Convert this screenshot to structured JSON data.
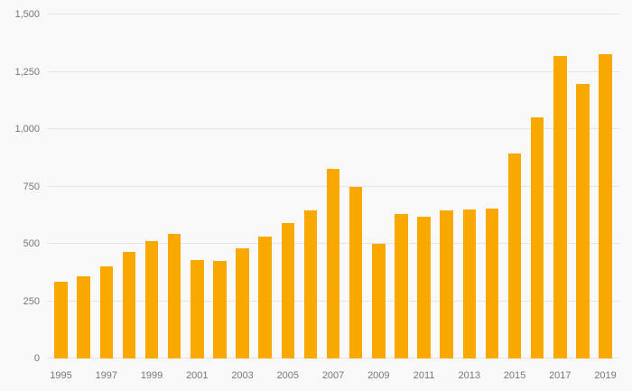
{
  "chart_data": {
    "type": "bar",
    "categories": [
      "1995",
      "1996",
      "1997",
      "1998",
      "1999",
      "2000",
      "2001",
      "2002",
      "2003",
      "2004",
      "2005",
      "2006",
      "2007",
      "2008",
      "2009",
      "2010",
      "2011",
      "2012",
      "2013",
      "2014",
      "2015",
      "2016",
      "2017",
      "2018",
      "2019"
    ],
    "values": [
      335,
      360,
      400,
      465,
      510,
      545,
      430,
      425,
      480,
      530,
      590,
      645,
      825,
      750,
      500,
      630,
      620,
      645,
      650,
      655,
      895,
      1050,
      1320,
      1195,
      1325
    ],
    "title": "",
    "xlabel": "",
    "ylabel": "",
    "ylim": [
      0,
      1500
    ],
    "yticks": [
      0,
      250,
      500,
      750,
      1000,
      1250,
      1500
    ],
    "ytick_labels": [
      "0",
      "250",
      "500",
      "750",
      "1,000",
      "1,250",
      "1,500"
    ],
    "x_tick_labels": [
      "1995",
      "1997",
      "1999",
      "2001",
      "2003",
      "2005",
      "2007",
      "2009",
      "2011",
      "2013",
      "2015",
      "2017",
      "2019"
    ],
    "grid": true,
    "legend": "none",
    "colors": {
      "bar": "#f9a800",
      "background": "#f9f9f9",
      "gridline": "#e4e4e4",
      "tick_text": "#767676"
    }
  }
}
